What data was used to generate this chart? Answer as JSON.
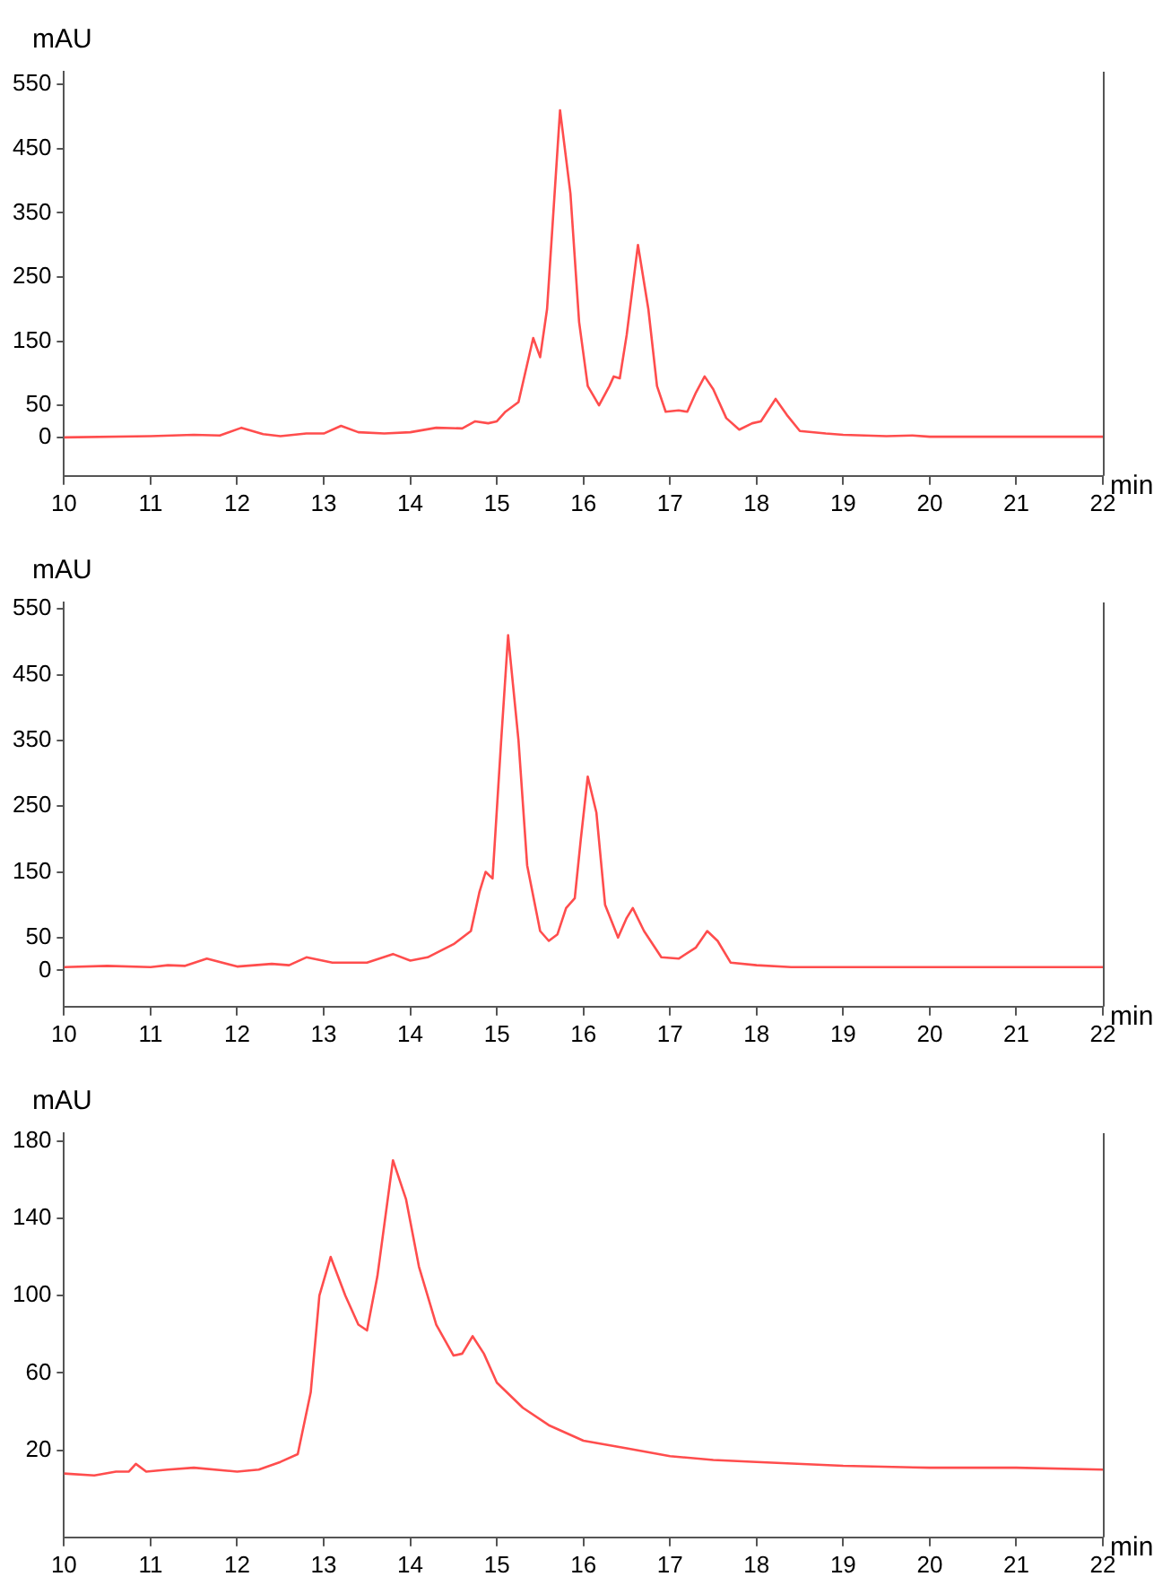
{
  "chart_data": [
    {
      "type": "line",
      "ylabel": "mAU",
      "xlabel": "min",
      "xlim": [
        10,
        22
      ],
      "xticks": [
        10,
        11,
        12,
        13,
        14,
        15,
        16,
        17,
        18,
        19,
        20,
        21,
        22
      ],
      "ylim": [
        -60,
        570
      ],
      "yticks": [
        0,
        50,
        150,
        250,
        350,
        450,
        550
      ],
      "grid": false,
      "legend": false,
      "marker": "none",
      "line_style": "solid",
      "series": [
        {
          "color": "#ff4d4d",
          "x": [
            10,
            11,
            11.5,
            11.8,
            12.05,
            12.3,
            12.5,
            12.8,
            13.0,
            13.2,
            13.4,
            13.7,
            14.0,
            14.3,
            14.6,
            14.75,
            14.9,
            15.0,
            15.1,
            15.25,
            15.42,
            15.5,
            15.58,
            15.73,
            15.85,
            15.95,
            16.05,
            16.18,
            16.3,
            16.35,
            16.42,
            16.5,
            16.63,
            16.75,
            16.85,
            16.95,
            17.1,
            17.2,
            17.3,
            17.4,
            17.5,
            17.65,
            17.8,
            17.95,
            18.05,
            18.22,
            18.35,
            18.5,
            18.8,
            19.0,
            19.5,
            19.8,
            20,
            22
          ],
          "values": [
            0,
            2,
            4,
            3,
            15,
            5,
            2,
            6,
            6,
            18,
            8,
            6,
            8,
            15,
            14,
            25,
            22,
            25,
            40,
            55,
            155,
            125,
            200,
            510,
            380,
            180,
            80,
            50,
            80,
            95,
            92,
            160,
            300,
            200,
            80,
            40,
            42,
            40,
            70,
            95,
            75,
            30,
            12,
            22,
            25,
            60,
            35,
            10,
            6,
            4,
            2,
            3,
            1,
            1
          ]
        }
      ]
    },
    {
      "type": "line",
      "ylabel": "mAU",
      "xlabel": "min",
      "xlim": [
        10,
        22
      ],
      "xticks": [
        10,
        11,
        12,
        13,
        14,
        15,
        16,
        17,
        18,
        19,
        20,
        21,
        22
      ],
      "ylim": [
        -55,
        560
      ],
      "yticks": [
        0,
        50,
        150,
        250,
        350,
        450,
        550
      ],
      "grid": false,
      "legend": false,
      "marker": "none",
      "line_style": "solid",
      "series": [
        {
          "color": "#ff4d4d",
          "x": [
            10,
            10.5,
            11,
            11.2,
            11.4,
            11.65,
            12.0,
            12.4,
            12.6,
            12.8,
            13.1,
            13.5,
            13.8,
            14.0,
            14.2,
            14.5,
            14.7,
            14.8,
            14.87,
            14.95,
            15.05,
            15.13,
            15.25,
            15.35,
            15.5,
            15.6,
            15.7,
            15.8,
            15.9,
            15.97,
            16.05,
            16.15,
            16.25,
            16.4,
            16.5,
            16.57,
            16.7,
            16.9,
            17.1,
            17.3,
            17.43,
            17.55,
            17.7,
            18.0,
            18.4,
            22
          ],
          "values": [
            5,
            7,
            5,
            8,
            7,
            18,
            6,
            10,
            8,
            20,
            12,
            12,
            25,
            15,
            20,
            40,
            60,
            120,
            150,
            140,
            350,
            510,
            350,
            160,
            60,
            45,
            55,
            95,
            110,
            200,
            295,
            240,
            100,
            50,
            80,
            95,
            60,
            20,
            18,
            35,
            60,
            45,
            12,
            8,
            5,
            5
          ]
        }
      ]
    },
    {
      "type": "line",
      "ylabel": "mAU",
      "xlabel": "min",
      "xlim": [
        10,
        22
      ],
      "xticks": [
        10,
        11,
        12,
        13,
        14,
        15,
        16,
        17,
        18,
        19,
        20,
        21,
        22
      ],
      "ylim": [
        -25,
        184
      ],
      "yticks": [
        20,
        60,
        100,
        140,
        180
      ],
      "grid": false,
      "legend": false,
      "marker": "none",
      "line_style": "solid",
      "series": [
        {
          "color": "#ff4d4d",
          "x": [
            10,
            10.35,
            10.6,
            10.75,
            10.83,
            10.95,
            11.2,
            11.5,
            12.0,
            12.25,
            12.5,
            12.7,
            12.85,
            12.95,
            13.08,
            13.25,
            13.4,
            13.5,
            13.62,
            13.8,
            13.95,
            14.1,
            14.3,
            14.5,
            14.6,
            14.72,
            14.85,
            15.0,
            15.3,
            15.6,
            16.0,
            16.5,
            17.0,
            17.5,
            18.0,
            19.0,
            20.0,
            21,
            22
          ],
          "values": [
            8,
            7,
            9,
            9,
            13,
            9,
            10,
            11,
            9,
            10,
            14,
            18,
            50,
            100,
            120,
            100,
            85,
            82,
            110,
            170,
            150,
            115,
            85,
            69,
            70,
            79,
            70,
            55,
            42,
            33,
            25,
            21,
            17,
            15,
            14,
            12,
            11,
            11,
            10
          ]
        }
      ]
    }
  ]
}
